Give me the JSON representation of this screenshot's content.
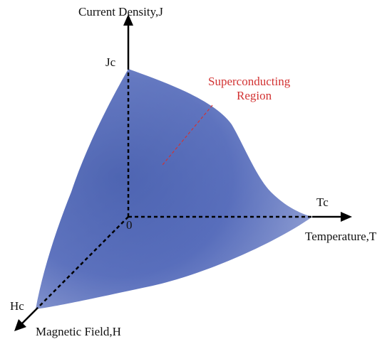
{
  "axes": {
    "j_axis_label": "Current Density,J",
    "t_axis_label": "Temperature,T",
    "h_axis_label": "Magnetic Field,H",
    "origin_label": "0"
  },
  "critical_points": {
    "jc": "Jc",
    "tc": "Tc",
    "hc": "Hc"
  },
  "region": {
    "line1": "Superconducting",
    "line2": "Region"
  },
  "colors": {
    "surface_edge": "#5a6fbc",
    "surface_center": "#3e57ac",
    "surface_light": "#8a9ad0",
    "region_label": "#d23232",
    "axis": "#000000"
  }
}
